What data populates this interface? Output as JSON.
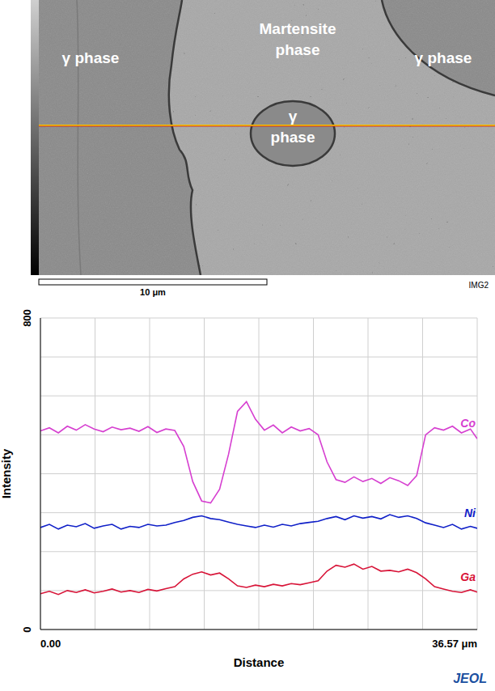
{
  "image": {
    "labels": [
      "γ phase",
      "Martensite phase",
      "γ phase",
      "γ phase"
    ],
    "scale_bar": "10 μm",
    "image_id": "IMG2"
  },
  "logo": "JEOL",
  "chart_data": {
    "type": "line",
    "x_label": "Distance",
    "y_label": "Intensity",
    "xlim": [
      0,
      36.57
    ],
    "xticks": [
      {
        "value": 0,
        "label": "0.00"
      },
      {
        "value": 36.57,
        "label": "36.57 μm"
      }
    ],
    "ylim": [
      0,
      800
    ],
    "yticks": [
      0,
      800
    ],
    "grid": true,
    "x": [
      0,
      0.75,
      1.5,
      2.25,
      3,
      3.75,
      4.5,
      5.25,
      6,
      6.75,
      7.5,
      8.25,
      9,
      9.75,
      10.5,
      11.25,
      12,
      12.75,
      13.5,
      14.25,
      15,
      15.75,
      16.5,
      17.25,
      18,
      18.75,
      19.5,
      20.25,
      21,
      21.75,
      22.5,
      23.25,
      24,
      24.75,
      25.5,
      26.25,
      27,
      27.75,
      28.5,
      29.25,
      30,
      30.75,
      31.5,
      32.25,
      33,
      33.75,
      34.5,
      35.25,
      36,
      36.57
    ],
    "series": [
      {
        "name": "Co",
        "color": "#d63fd0",
        "values": [
          510,
          518,
          505,
          522,
          512,
          526,
          515,
          508,
          520,
          513,
          517,
          509,
          521,
          506,
          515,
          511,
          470,
          380,
          330,
          325,
          360,
          450,
          560,
          585,
          540,
          512,
          525,
          505,
          520,
          510,
          516,
          500,
          430,
          385,
          378,
          392,
          380,
          388,
          375,
          390,
          382,
          370,
          395,
          500,
          518,
          512,
          522,
          505,
          515,
          490
        ]
      },
      {
        "name": "Ni",
        "color": "#1020c8",
        "values": [
          262,
          270,
          258,
          268,
          264,
          272,
          260,
          266,
          270,
          258,
          265,
          262,
          270,
          266,
          268,
          275,
          280,
          288,
          292,
          285,
          282,
          276,
          270,
          266,
          262,
          268,
          263,
          270,
          266,
          272,
          275,
          278,
          285,
          290,
          282,
          292,
          286,
          290,
          284,
          295,
          288,
          292,
          285,
          274,
          268,
          262,
          270,
          258,
          265,
          260
        ]
      },
      {
        "name": "Ga",
        "color": "#d81438",
        "values": [
          92,
          98,
          90,
          100,
          95,
          102,
          94,
          98,
          104,
          96,
          100,
          95,
          103,
          99,
          105,
          110,
          130,
          142,
          148,
          140,
          145,
          130,
          112,
          108,
          114,
          110,
          116,
          112,
          118,
          115,
          120,
          125,
          150,
          165,
          160,
          168,
          155,
          162,
          150,
          152,
          148,
          155,
          146,
          130,
          110,
          104,
          98,
          95,
          102,
          96
        ]
      }
    ]
  }
}
